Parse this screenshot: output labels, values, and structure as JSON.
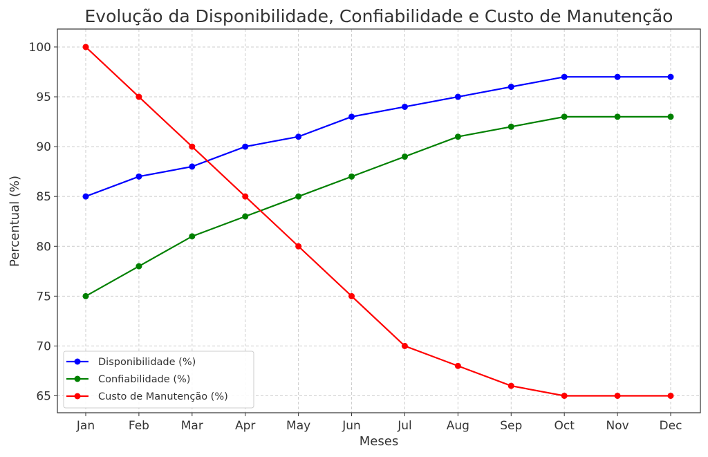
{
  "chart_data": {
    "type": "line",
    "title": "Evolução da Disponibilidade, Confiabilidade e Custo de Manutenção",
    "xlabel": "Meses",
    "ylabel": "Percentual (%)",
    "categories": [
      "Jan",
      "Feb",
      "Mar",
      "Apr",
      "May",
      "Jun",
      "Jul",
      "Aug",
      "Sep",
      "Oct",
      "Nov",
      "Dec"
    ],
    "ylim": [
      63.3,
      101.8
    ],
    "yticks": [
      65,
      70,
      75,
      80,
      85,
      90,
      95,
      100
    ],
    "grid": true,
    "legend_position": "lower-left",
    "series": [
      {
        "name": "Disponibilidade (%)",
        "color": "#0000ff",
        "values": [
          85,
          87,
          88,
          90,
          91,
          93,
          94,
          95,
          96,
          97,
          97,
          97
        ]
      },
      {
        "name": "Confiabilidade (%)",
        "color": "#008000",
        "values": [
          75,
          78,
          81,
          83,
          85,
          87,
          89,
          91,
          92,
          93,
          93,
          93
        ]
      },
      {
        "name": "Custo de Manutenção (%)",
        "color": "#ff0000",
        "values": [
          100,
          95,
          90,
          85,
          80,
          75,
          70,
          68,
          66,
          65,
          65,
          65
        ]
      }
    ]
  }
}
